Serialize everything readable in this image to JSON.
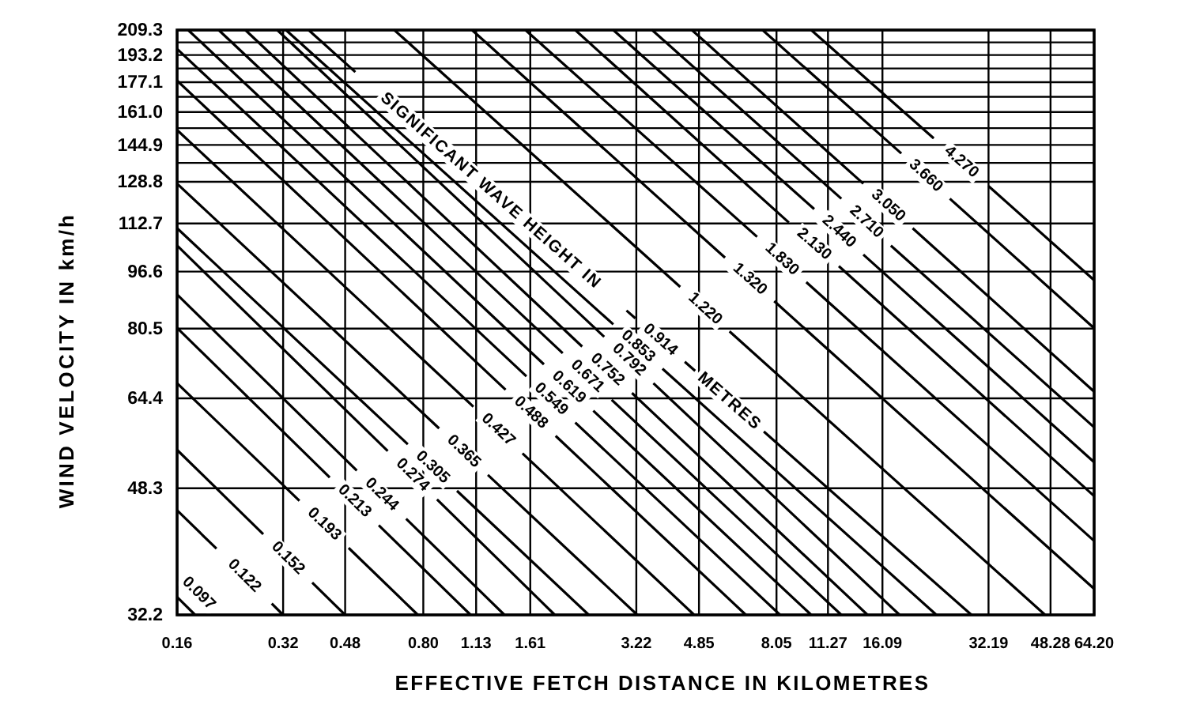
{
  "chart_data": {
    "type": "line",
    "xlabel": "EFFECTIVE FETCH DISTANCE IN KILOMETRES",
    "ylabel": "WIND VELOCITY IN km/h",
    "log": "xy",
    "grid": true,
    "xlim": [
      0.16,
      64.2
    ],
    "ylim": [
      32.2,
      209.3
    ],
    "xticks": [
      0.16,
      0.32,
      0.48,
      {
        "value": 0.8,
        "label": "0.80"
      },
      1.13,
      1.61,
      3.22,
      4.85,
      8.05,
      11.27,
      16.09,
      32.19,
      48.28,
      {
        "value": 64.2,
        "label": "64.20"
      }
    ],
    "yticks": [
      32.2,
      48.3,
      64.4,
      80.5,
      96.6,
      112.7,
      128.8,
      {
        "value": 136.8,
        "label": null
      },
      144.9,
      {
        "value": 152.9,
        "label": null
      },
      {
        "value": 161.0,
        "label": "161.0"
      },
      {
        "value": 169.0,
        "label": null
      },
      177.1,
      {
        "value": 185.1,
        "label": null
      },
      193.2,
      {
        "value": 201.2,
        "label": null
      },
      209.3
    ],
    "annotations": [
      "SIGNIFICANT WAVE HEIGHT IN",
      "METRES"
    ],
    "series": [
      {
        "name": "0.097",
        "color": "#000000",
        "x": [
          0.16,
          0.18
        ],
        "values": [
          34.1,
          32.2
        ]
      },
      {
        "name": "0.122",
        "color": "#000000",
        "x": [
          0.16,
          0.207,
          null,
          0.297,
          0.32
        ],
        "values": [
          45.0,
          39.8,
          null,
          33.4,
          32.2
        ]
      },
      {
        "name": "0.152",
        "color": "#000000",
        "x": [
          0.16,
          0.281,
          null,
          0.387,
          0.48
        ],
        "values": [
          54.6,
          41.7,
          null,
          35.7,
          32.2
        ]
      },
      {
        "name": "0.193",
        "color": "#000000",
        "x": [
          0.16,
          0.356,
          null,
          0.491,
          0.772
        ],
        "values": [
          67.6,
          46.4,
          null,
          39.9,
          32.2
        ]
      },
      {
        "name": "0.213",
        "color": "#000000",
        "x": [
          0.16,
          0.434,
          null,
          0.598,
          1.09
        ],
        "values": [
          80.7,
          50.0,
          null,
          42.9,
          32.2
        ]
      },
      {
        "name": "0.244",
        "color": "#000000",
        "x": [
          0.16,
          0.518,
          null,
          0.715,
          1.36
        ],
        "values": [
          89.8,
          51.1,
          null,
          43.8,
          32.2
        ]
      },
      {
        "name": "0.274",
        "color": "#000000",
        "x": [
          0.16,
          0.634,
          null,
          0.875,
          1.89
        ],
        "values": [
          105,
          54.4,
          null,
          46.6,
          32.2
        ]
      },
      {
        "name": "0.305",
        "color": "#000000",
        "x": [
          0.16,
          0.723,
          null,
          0.997,
          2.36
        ],
        "values": [
          111,
          55.6,
          null,
          47.9,
          32.2
        ]
      },
      {
        "name": "0.365",
        "color": "#000000",
        "x": [
          0.16,
          0.887,
          null,
          1.22,
          3.24
        ],
        "values": [
          128,
          58.5,
          null,
          50.4,
          32.2
        ]
      },
      {
        "name": "0.427",
        "color": "#000000",
        "x": [
          0.16,
          1.11,
          null,
          1.53,
          4.7
        ],
        "values": [
          152,
          62.7,
          null,
          54.0,
          32.2
        ]
      },
      {
        "name": "0.488",
        "color": "#000000",
        "x": [
          0.16,
          1.37,
          null,
          1.9,
          6.59
        ],
        "values": [
          178,
          66.2,
          null,
          57.1,
          32.2
        ]
      },
      {
        "name": "0.549",
        "color": "#000000",
        "x": [
          0.16,
          1.57,
          null,
          2.16,
          8.24
        ],
        "values": [
          197,
          69.1,
          null,
          59.6,
          32.2
        ]
      },
      {
        "name": "0.619",
        "color": "#000000",
        "x": [
          0.172,
          1.76,
          null,
          2.43,
          10.1
        ],
        "values": [
          209.3,
          71.8,
          null,
          61.9,
          32.2
        ]
      },
      {
        "name": "0.671",
        "color": "#000000",
        "x": [
          0.21,
          1.99,
          null,
          2.74,
          12.3
        ],
        "values": [
          209.3,
          74.4,
          null,
          64.1,
          32.2
        ]
      },
      {
        "name": "0.752",
        "color": "#000000",
        "x": [
          0.25,
          2.26,
          null,
          3.13,
          14.6
        ],
        "values": [
          209.3,
          76.0,
          null,
          65.5,
          32.2
        ]
      },
      {
        "name": "0.792",
        "color": "#000000",
        "x": [
          0.308,
          2.61,
          null,
          3.6,
          18.0
        ],
        "values": [
          209.3,
          78.4,
          null,
          67.6,
          32.2
        ]
      },
      {
        "name": "0.853",
        "color": "#000000",
        "x": [
          0.326,
          2.77,
          null,
          3.82,
          22.9
        ],
        "values": [
          209.3,
          81.6,
          null,
          70.8,
          32.2
        ]
      },
      {
        "name": "0.914",
        "color": "#000000",
        "x": [
          0.378,
          0.513,
          null,
          3.02,
          3.2,
          null,
          4.42,
          4.73,
          null,
          7.41,
          28.8
        ],
        "values": [
          209.3,
          183,
          null,
          85.3,
          83.2,
          null,
          72.4,
          70.3,
          null,
          57.9,
          32.2
        ]
      },
      {
        "name": "1.220",
        "color": "#000000",
        "x": [
          0.662,
          4.29,
          null,
          5.92,
          46.6
        ],
        "values": [
          209.3,
          92.0,
          null,
          79.8,
          32.2
        ]
      },
      {
        "name": "1.320",
        "color": "#000000",
        "x": [
          1.1,
          5.75,
          null,
          7.93,
          64.2
        ],
        "values": [
          209.3,
          101,
          null,
          87.9,
          35.0
        ]
      },
      {
        "name": "1.830",
        "color": "#000000",
        "x": [
          1.56,
          7.09,
          null,
          9.78,
          64.2
        ],
        "values": [
          209.3,
          108,
          null,
          93.4,
          40.8
        ]
      },
      {
        "name": "2.130",
        "color": "#000000",
        "x": [
          2.16,
          8.73,
          null,
          12.1,
          64.2
        ],
        "values": [
          209.3,
          113,
          null,
          98.3,
          47.1
        ]
      },
      {
        "name": "2.440",
        "color": "#000000",
        "x": [
          2.77,
          10.3,
          null,
          14.2,
          64.2
        ],
        "values": [
          209.3,
          118,
          null,
          102,
          52.5
        ]
      },
      {
        "name": "2.710",
        "color": "#000000",
        "x": [
          3.57,
          12.3,
          null,
          17.0,
          64.2
        ],
        "values": [
          209.3,
          122,
          null,
          105,
          58.7
        ]
      },
      {
        "name": "3.050",
        "color": "#000000",
        "x": [
          4.63,
          14.2,
          null,
          19.6,
          64.2
        ],
        "values": [
          209.3,
          128,
          null,
          111,
          65.8
        ]
      },
      {
        "name": "3.660",
        "color": "#000000",
        "x": [
          7.35,
          18.2,
          null,
          25.0,
          64.2
        ],
        "values": [
          209.3,
          141,
          null,
          122,
          80.6
        ]
      },
      {
        "name": "4.270",
        "color": "#000000",
        "x": [
          10.1,
          22.5,
          null,
          32.2,
          64.2
        ],
        "values": [
          209.3,
          148,
          null,
          127,
          94.0
        ]
      }
    ]
  }
}
